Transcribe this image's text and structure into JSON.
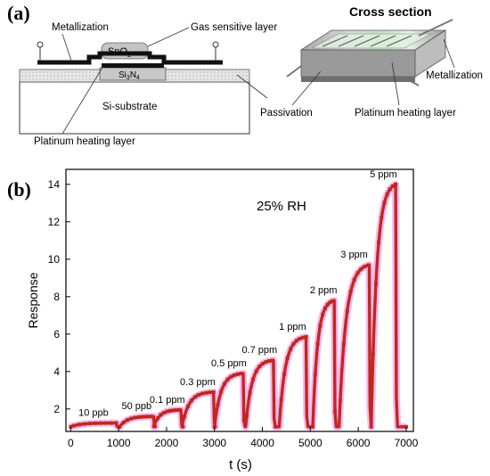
{
  "panel_a": {
    "label": "(a)",
    "schematic": {
      "metallization": "Metallization",
      "gas_layer": "Gas sensitive layer",
      "sno2_base": "SnO",
      "sno2_sub": "2",
      "si3n4_a": "Si",
      "si3n4_sub1": "3",
      "si3n4_b": "N",
      "si3n4_sub2": "4",
      "substrate": "Si-substrate",
      "heater": "Platinum heating layer"
    },
    "cross_section": {
      "title": "Cross section",
      "metallization": "Metallization",
      "passivation": "Passivation",
      "heater": "Platinum heating layer"
    }
  },
  "panel_b": {
    "label": "(b)",
    "chart_data": {
      "type": "line",
      "title": "",
      "xlabel": "t (s)",
      "ylabel": "Response",
      "xlim": [
        -100,
        7150
      ],
      "ylim": [
        0.8,
        14.8
      ],
      "xticks": [
        0,
        1000,
        2000,
        3000,
        4000,
        5000,
        6000,
        7000
      ],
      "yticks": [
        2,
        4,
        6,
        8,
        10,
        12,
        14
      ],
      "annotation": "25% RH",
      "series_color": "#c0281d",
      "halo_color": "#f05fe0",
      "pulses": [
        {
          "label": "10 ppb",
          "start": 0,
          "end": 950,
          "peak": 1.25
        },
        {
          "label": "50 ppb",
          "start": 1020,
          "end": 1730,
          "peak": 1.6
        },
        {
          "label": "0.1 ppm",
          "start": 1730,
          "end": 2300,
          "peak": 1.95
        },
        {
          "label": "0.3 ppm",
          "start": 2320,
          "end": 2980,
          "peak": 2.9
        },
        {
          "label": "0.5 ppm",
          "start": 3000,
          "end": 3600,
          "peak": 3.9
        },
        {
          "label": "0.7 ppm",
          "start": 3650,
          "end": 4230,
          "peak": 4.6
        },
        {
          "label": "1 ppm",
          "start": 4350,
          "end": 4910,
          "peak": 5.85
        },
        {
          "label": "2 ppm",
          "start": 5050,
          "end": 5500,
          "peak": 7.8
        },
        {
          "label": "3 ppm",
          "start": 5600,
          "end": 6230,
          "peak": 9.7
        },
        {
          "label": "5 ppm",
          "start": 6270,
          "end": 6780,
          "peak": 14.0
        }
      ],
      "baseline": 1.05
    }
  }
}
